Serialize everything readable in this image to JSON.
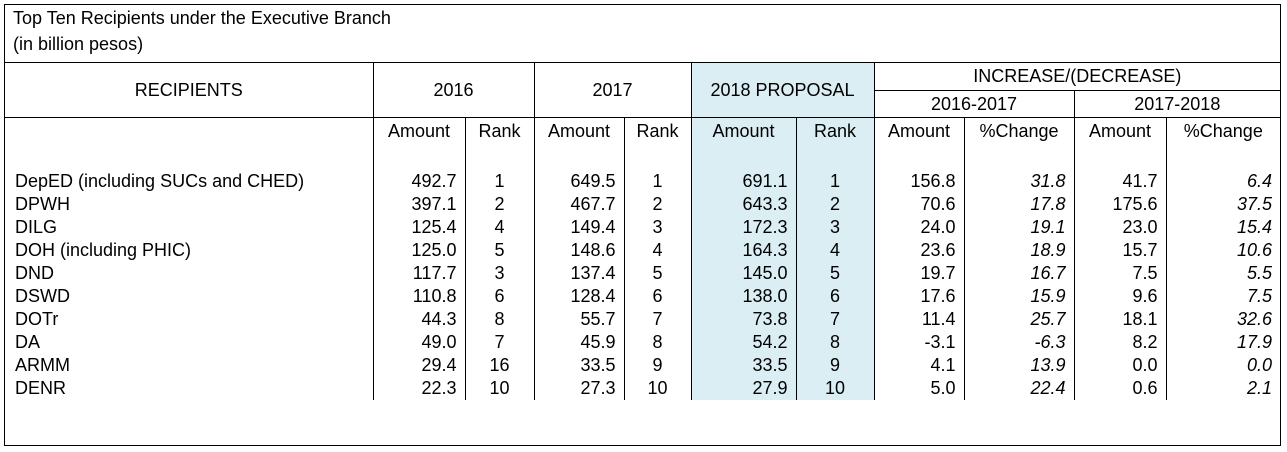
{
  "chart_data": {
    "type": "table",
    "title": "Top Ten Recipients under the Executive Branch",
    "subtitle": "(in billion pesos)",
    "headers": {
      "recipients": "RECIPIENTS",
      "y2016": "2016",
      "y2017": "2017",
      "y2018": "2018 PROPOSAL",
      "increase": "INCREASE/(DECREASE)",
      "p1": "2016-2017",
      "p2": "2017-2018",
      "amount": "Amount",
      "rank": "Rank",
      "pct_change": "%Change"
    },
    "rows": [
      {
        "name": "DepED (including SUCs and CHED)",
        "a2016": "492.7",
        "r2016": "1",
        "a2017": "649.5",
        "r2017": "1",
        "a2018": "691.1",
        "r2018": "1",
        "inc1_amt": "156.8",
        "inc1_pct": "31.8",
        "inc2_amt": "41.7",
        "inc2_pct": "6.4"
      },
      {
        "name": "DPWH",
        "a2016": "397.1",
        "r2016": "2",
        "a2017": "467.7",
        "r2017": "2",
        "a2018": "643.3",
        "r2018": "2",
        "inc1_amt": "70.6",
        "inc1_pct": "17.8",
        "inc2_amt": "175.6",
        "inc2_pct": "37.5"
      },
      {
        "name": "DILG",
        "a2016": "125.4",
        "r2016": "4",
        "a2017": "149.4",
        "r2017": "3",
        "a2018": "172.3",
        "r2018": "3",
        "inc1_amt": "24.0",
        "inc1_pct": "19.1",
        "inc2_amt": "23.0",
        "inc2_pct": "15.4"
      },
      {
        "name": "DOH (including PHIC)",
        "a2016": "125.0",
        "r2016": "5",
        "a2017": "148.6",
        "r2017": "4",
        "a2018": "164.3",
        "r2018": "4",
        "inc1_amt": "23.6",
        "inc1_pct": "18.9",
        "inc2_amt": "15.7",
        "inc2_pct": "10.6"
      },
      {
        "name": "DND",
        "a2016": "117.7",
        "r2016": "3",
        "a2017": "137.4",
        "r2017": "5",
        "a2018": "145.0",
        "r2018": "5",
        "inc1_amt": "19.7",
        "inc1_pct": "16.7",
        "inc2_amt": "7.5",
        "inc2_pct": "5.5"
      },
      {
        "name": "DSWD",
        "a2016": "110.8",
        "r2016": "6",
        "a2017": "128.4",
        "r2017": "6",
        "a2018": "138.0",
        "r2018": "6",
        "inc1_amt": "17.6",
        "inc1_pct": "15.9",
        "inc2_amt": "9.6",
        "inc2_pct": "7.5"
      },
      {
        "name": "DOTr",
        "a2016": "44.3",
        "r2016": "8",
        "a2017": "55.7",
        "r2017": "7",
        "a2018": "73.8",
        "r2018": "7",
        "inc1_amt": "11.4",
        "inc1_pct": "25.7",
        "inc2_amt": "18.1",
        "inc2_pct": "32.6"
      },
      {
        "name": "DA",
        "a2016": "49.0",
        "r2016": "7",
        "a2017": "45.9",
        "r2017": "8",
        "a2018": "54.2",
        "r2018": "8",
        "inc1_amt": "-3.1",
        "inc1_pct": "-6.3",
        "inc2_amt": "8.2",
        "inc2_pct": "17.9"
      },
      {
        "name": "ARMM",
        "a2016": "29.4",
        "r2016": "16",
        "a2017": "33.5",
        "r2017": "9",
        "a2018": "33.5",
        "r2018": "9",
        "inc1_amt": "4.1",
        "inc1_pct": "13.9",
        "inc2_amt": "0.0",
        "inc2_pct": "0.0"
      },
      {
        "name": "DENR",
        "a2016": "22.3",
        "r2016": "10",
        "a2017": "27.3",
        "r2017": "10",
        "a2018": "27.9",
        "r2018": "10",
        "inc1_amt": "5.0",
        "inc1_pct": "22.4",
        "inc2_amt": "0.6",
        "inc2_pct": "2.1"
      }
    ],
    "colors": {
      "highlight_column": "#dbeef4"
    }
  }
}
